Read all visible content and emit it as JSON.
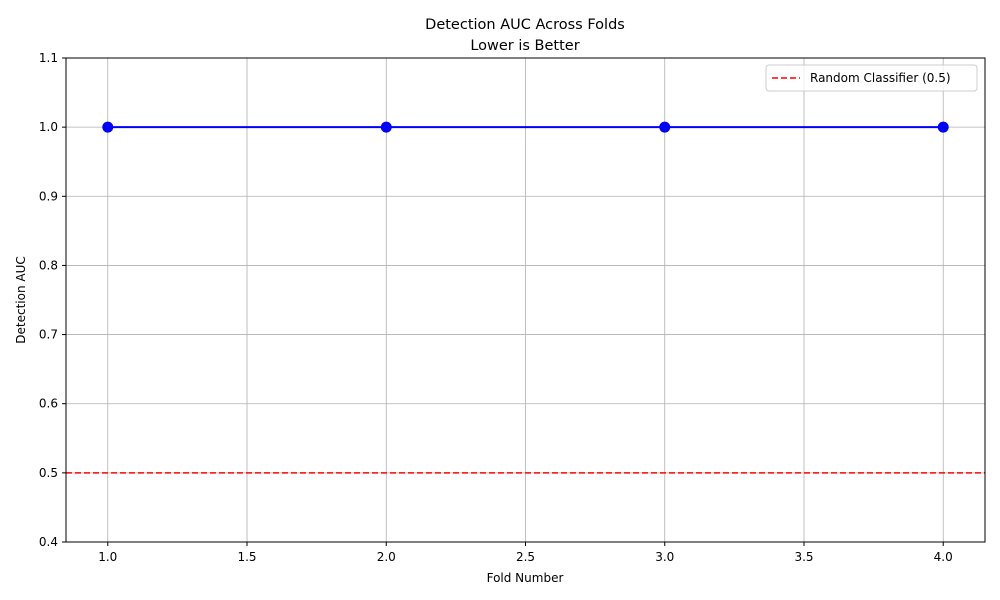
{
  "chart_data": {
    "type": "line",
    "title": "Detection AUC Across Folds",
    "subtitle": "Lower is Better",
    "xlabel": "Fold Number",
    "ylabel": "Detection AUC",
    "xlim": [
      0.85,
      4.15
    ],
    "ylim": [
      0.4,
      1.1
    ],
    "x_ticks": [
      "1.0",
      "1.5",
      "2.0",
      "2.5",
      "3.0",
      "3.5",
      "4.0"
    ],
    "y_ticks": [
      "0.4",
      "0.5",
      "0.6",
      "0.7",
      "0.8",
      "0.9",
      "1.0",
      "1.1"
    ],
    "grid": true,
    "legend_position": "top-right",
    "series": [
      {
        "x": [
          1,
          2,
          3,
          4
        ],
        "y": [
          1.0,
          1.0,
          1.0,
          1.0
        ],
        "color": "#0000ff",
        "marker": "circle"
      }
    ],
    "reference_lines": [
      {
        "name": "Random Classifier (0.5)",
        "y": 0.5,
        "color": "#ff0000",
        "style": "dashed"
      }
    ]
  }
}
